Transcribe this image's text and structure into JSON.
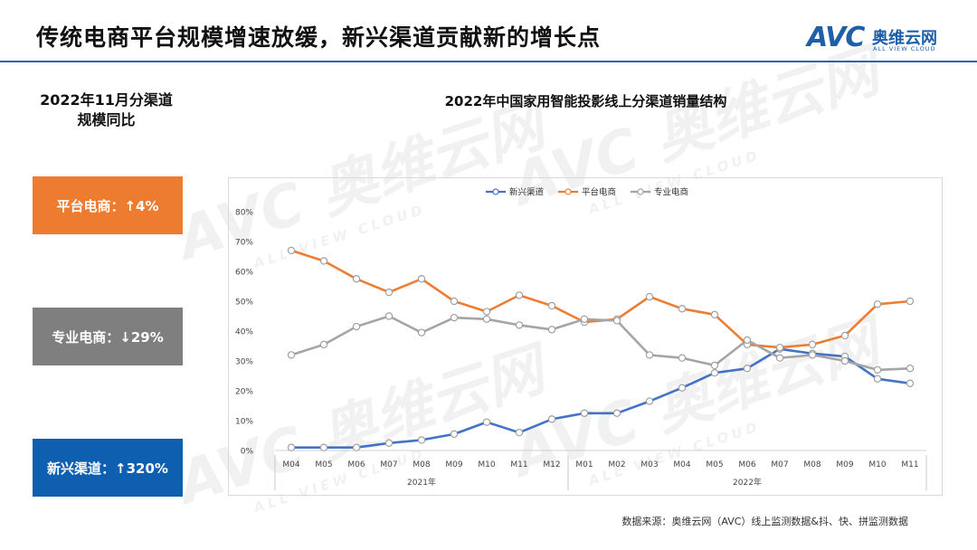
{
  "header": {
    "title": "传统电商平台规模增速放缓，新兴渠道贡献新的增长点",
    "logo_mark": "AVC",
    "logo_cn": "奥维云网",
    "logo_en": "ALL VIEW CLOUD"
  },
  "watermark": {
    "mark": "AVC 奥维云网",
    "sub": "ALL VIEW CLOUD"
  },
  "side": {
    "heading": "2022年11月分渠道规模同比",
    "boxes": [
      {
        "label": "平台电商：↑4%",
        "color": "#ee7c30"
      },
      {
        "label": "专业电商：↓29%",
        "color": "#7f7f7f"
      },
      {
        "label": "新兴渠道：↑320%",
        "color": "#0f5fb0"
      }
    ]
  },
  "source": "数据来源：奥维云网（AVC）线上监测数据&抖、快、拼监测数据",
  "chart_data": {
    "type": "line",
    "title": "2022年中国家用智能投影线上分渠道销量结构",
    "categories": [
      "M04",
      "M05",
      "M06",
      "M07",
      "M08",
      "M09",
      "M10",
      "M11",
      "M12",
      "M01",
      "M02",
      "M03",
      "M04",
      "M05",
      "M06",
      "M07",
      "M08",
      "M09",
      "M10",
      "M11"
    ],
    "groups": [
      {
        "label": "2021年",
        "from": 0,
        "to": 8
      },
      {
        "label": "2022年",
        "from": 9,
        "to": 19
      }
    ],
    "y_ticks": [
      "0%",
      "10%",
      "20%",
      "30%",
      "40%",
      "50%",
      "60%",
      "70%",
      "80%"
    ],
    "ylim": [
      0,
      80
    ],
    "legend_position": "top",
    "series": [
      {
        "name": "新兴渠道",
        "color": "#4472c4",
        "values": [
          1,
          1,
          1,
          2.5,
          3.5,
          5.5,
          9.5,
          6,
          10.5,
          12.5,
          12.5,
          16.5,
          21,
          26,
          27.5,
          34,
          32.5,
          31.5,
          24,
          22.5
        ]
      },
      {
        "name": "平台电商",
        "color": "#ed7d31",
        "values": [
          67,
          63.5,
          57.5,
          53,
          57.5,
          50,
          46.5,
          52,
          48.5,
          43,
          44,
          51.5,
          47.5,
          45.5,
          35.5,
          34.5,
          35.5,
          38.5,
          49,
          50
        ]
      },
      {
        "name": "专业电商",
        "color": "#a5a5a5",
        "values": [
          32,
          35.5,
          41.5,
          45,
          39.5,
          44.5,
          44,
          42,
          40.5,
          44,
          43.5,
          32,
          31,
          28.5,
          37,
          31,
          32,
          30,
          27,
          27.5
        ]
      }
    ]
  }
}
